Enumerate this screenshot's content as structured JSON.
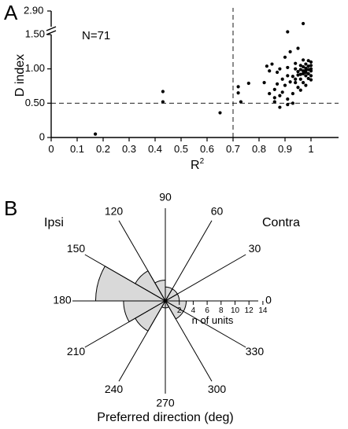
{
  "panel_a": {
    "letter": "A",
    "n_label": "N=71",
    "ylabel": "D index",
    "xlabel_main": "R",
    "xlabel_sup": "2",
    "y_break_label": "2.90",
    "y_ticks": [
      "0",
      "0.50",
      "1.00",
      "1.50"
    ],
    "x_ticks": [
      "0",
      "0.1",
      "0.2",
      "0.3",
      "0.4",
      "0.5",
      "0.6",
      "0.7",
      "0.8",
      "0.9",
      "1"
    ]
  },
  "panel_b": {
    "letter": "B",
    "ipsi_label": "Ipsi",
    "contra_label": "Contra",
    "angle_labels": [
      "0",
      "30",
      "60",
      "90",
      "120",
      "150",
      "180",
      "210",
      "240",
      "270",
      "300",
      "330"
    ],
    "radial_ticks": [
      "2",
      "4",
      "6",
      "8",
      "10",
      "12",
      "14"
    ],
    "radial_label": "n of units",
    "xlabel": "Preferred direction (deg)"
  },
  "chart_data": [
    {
      "type": "scatter",
      "xlabel": "R²",
      "ylabel": "D index",
      "xlim": [
        0,
        1
      ],
      "ylim": [
        0,
        1.7
      ],
      "y_axis_break": true,
      "y_break_value": 2.9,
      "annotation": "N=71",
      "reference_lines": [
        {
          "orientation": "horizontal",
          "value": 0.5,
          "style": "dashed"
        },
        {
          "orientation": "vertical",
          "value": 0.7,
          "style": "dashed"
        }
      ],
      "points": [
        [
          0.17,
          0.05
        ],
        [
          0.43,
          0.67
        ],
        [
          0.43,
          0.52
        ],
        [
          0.65,
          0.36
        ],
        [
          0.72,
          0.74
        ],
        [
          0.72,
          0.65
        ],
        [
          0.73,
          0.52
        ],
        [
          0.76,
          0.79
        ],
        [
          0.82,
          0.8
        ],
        [
          0.83,
          1.04
        ],
        [
          0.84,
          0.97
        ],
        [
          0.84,
          0.64
        ],
        [
          0.85,
          1.07
        ],
        [
          0.86,
          0.7
        ],
        [
          0.86,
          0.58
        ],
        [
          0.86,
          0.52
        ],
        [
          0.87,
          0.95
        ],
        [
          0.87,
          0.78
        ],
        [
          0.88,
          1.0
        ],
        [
          0.88,
          0.61
        ],
        [
          0.88,
          0.44
        ],
        [
          0.89,
          0.85
        ],
        [
          0.89,
          0.66
        ],
        [
          0.9,
          1.17
        ],
        [
          0.9,
          0.76
        ],
        [
          0.91,
          1.54
        ],
        [
          0.91,
          1.02
        ],
        [
          0.91,
          0.9
        ],
        [
          0.91,
          0.56
        ],
        [
          0.91,
          0.48
        ],
        [
          0.92,
          1.25
        ],
        [
          0.92,
          0.81
        ],
        [
          0.93,
          0.89
        ],
        [
          0.93,
          0.64
        ],
        [
          0.93,
          0.5
        ],
        [
          0.94,
          1.08
        ],
        [
          0.94,
          1.0
        ],
        [
          0.94,
          0.85
        ],
        [
          0.94,
          0.8
        ],
        [
          0.95,
          1.3
        ],
        [
          0.95,
          0.96
        ],
        [
          0.95,
          0.91
        ],
        [
          0.95,
          0.73
        ],
        [
          0.96,
          1.05
        ],
        [
          0.96,
          0.99
        ],
        [
          0.96,
          0.92
        ],
        [
          0.96,
          0.85
        ],
        [
          0.96,
          0.69
        ],
        [
          0.97,
          1.66
        ],
        [
          0.97,
          1.13
        ],
        [
          0.97,
          1.03
        ],
        [
          0.97,
          0.97
        ],
        [
          0.97,
          0.93
        ],
        [
          0.97,
          0.8
        ],
        [
          0.98,
          1.07
        ],
        [
          0.98,
          1.01
        ],
        [
          0.98,
          0.98
        ],
        [
          0.98,
          0.9
        ],
        [
          0.98,
          0.76
        ],
        [
          0.99,
          1.12
        ],
        [
          0.99,
          1.04
        ],
        [
          0.99,
          0.99
        ],
        [
          0.99,
          0.93
        ],
        [
          0.99,
          0.86
        ],
        [
          1.0,
          1.1
        ],
        [
          1.0,
          1.05
        ],
        [
          1.0,
          0.97
        ],
        [
          1.0,
          0.9
        ],
        [
          1.0,
          0.84
        ],
        [
          1.0,
          1.0
        ],
        [
          0.98,
          0.95
        ]
      ]
    },
    {
      "type": "polar-histogram",
      "title": "",
      "xlabel": "Preferred direction (deg)",
      "radial_label": "n of units",
      "rlim": [
        0,
        14
      ],
      "bin_width_deg": 30,
      "bins": [
        {
          "from": 0,
          "to": 30,
          "value": 2
        },
        {
          "from": 30,
          "to": 60,
          "value": 2
        },
        {
          "from": 60,
          "to": 90,
          "value": 2
        },
        {
          "from": 90,
          "to": 120,
          "value": 3
        },
        {
          "from": 120,
          "to": 150,
          "value": 5
        },
        {
          "from": 150,
          "to": 180,
          "value": 10
        },
        {
          "from": 180,
          "to": 210,
          "value": 6
        },
        {
          "from": 210,
          "to": 240,
          "value": 5
        },
        {
          "from": 240,
          "to": 270,
          "value": 1
        },
        {
          "from": 270,
          "to": 300,
          "value": 1
        },
        {
          "from": 300,
          "to": 330,
          "value": 3
        },
        {
          "from": 330,
          "to": 360,
          "value": 3
        }
      ]
    }
  ]
}
